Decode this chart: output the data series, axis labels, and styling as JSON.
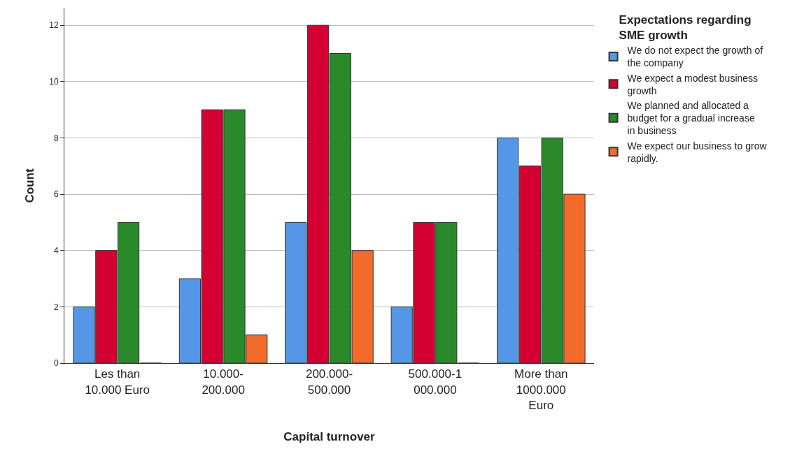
{
  "chart_data": {
    "type": "bar",
    "xlabel": "Capital turnover",
    "ylabel": "Count",
    "legend_title": "Expectations regarding SME growth",
    "categories": [
      "Les than 10.000 Euro",
      "10.000-200.000",
      "200.000-500.000",
      "500.000-1 000.000",
      "More than 1000.000 Euro"
    ],
    "series": [
      {
        "name": "We do not expect the growth of the company",
        "color": "#5596e6",
        "values": [
          2,
          3,
          5,
          2,
          8
        ]
      },
      {
        "name": "We expect a modest business growth",
        "color": "#d50032",
        "values": [
          4,
          9,
          12,
          5,
          7
        ]
      },
      {
        "name": "We planned and allocated a budget for a gradual increase in business",
        "color": "#2a8a2a",
        "values": [
          5,
          9,
          11,
          5,
          8
        ]
      },
      {
        "name": "We expect our business to grow rapidly.",
        "color": "#f26b2a",
        "values": [
          0,
          1,
          4,
          0,
          6
        ]
      }
    ],
    "ylim": [
      0,
      12.6
    ],
    "yticks": [
      0,
      2,
      4,
      6,
      8,
      10,
      12
    ],
    "grid": "y",
    "legend": "top right"
  }
}
